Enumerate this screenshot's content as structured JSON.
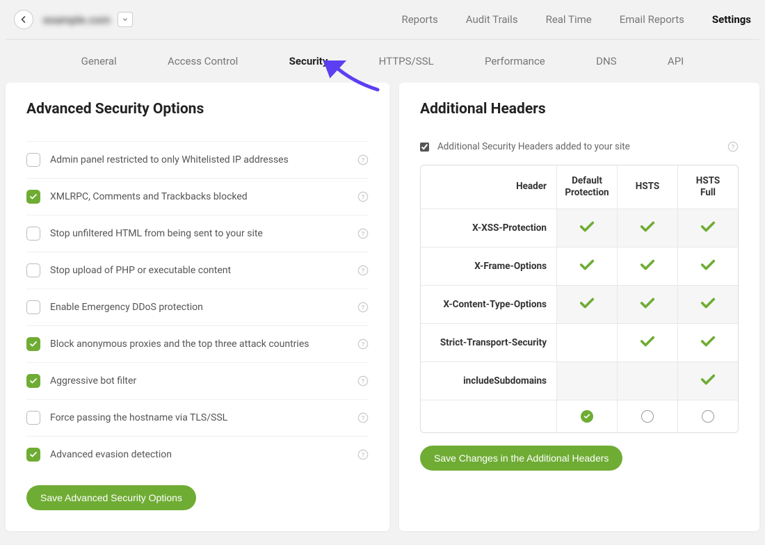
{
  "header": {
    "domain": "example.com",
    "nav": [
      {
        "label": "Reports",
        "active": false
      },
      {
        "label": "Audit Trails",
        "active": false
      },
      {
        "label": "Real Time",
        "active": false
      },
      {
        "label": "Email Reports",
        "active": false
      },
      {
        "label": "Settings",
        "active": true
      }
    ]
  },
  "subnav": [
    {
      "label": "General",
      "active": false
    },
    {
      "label": "Access Control",
      "active": false
    },
    {
      "label": "Security",
      "active": true
    },
    {
      "label": "HTTPS/SSL",
      "active": false
    },
    {
      "label": "Performance",
      "active": false
    },
    {
      "label": "DNS",
      "active": false
    },
    {
      "label": "API",
      "active": false
    }
  ],
  "left_panel": {
    "title": "Advanced Security Options",
    "options": [
      {
        "label": "Admin panel restricted to only Whitelisted IP addresses",
        "checked": false
      },
      {
        "label": "XMLRPC, Comments and Trackbacks blocked",
        "checked": true
      },
      {
        "label": "Stop unfiltered HTML from being sent to your site",
        "checked": false
      },
      {
        "label": "Stop upload of PHP or executable content",
        "checked": false
      },
      {
        "label": "Enable Emergency DDoS protection",
        "checked": false
      },
      {
        "label": "Block anonymous proxies and the top three attack countries",
        "checked": true
      },
      {
        "label": "Aggressive bot filter",
        "checked": true
      },
      {
        "label": "Force passing the hostname via TLS/SSL",
        "checked": false
      },
      {
        "label": "Advanced evasion detection",
        "checked": true
      }
    ],
    "save_label": "Save Advanced Security Options"
  },
  "right_panel": {
    "title": "Additional Headers",
    "top_checkbox_label": "Additional Security Headers added to your site",
    "top_checkbox_checked": true,
    "table": {
      "col_header_name": "Header",
      "columns": [
        "Default Protection",
        "HSTS",
        "HSTS Full"
      ],
      "rows": [
        {
          "name": "X-XSS-Protection",
          "values": [
            true,
            true,
            true
          ]
        },
        {
          "name": "X-Frame-Options",
          "values": [
            true,
            true,
            true
          ]
        },
        {
          "name": "X-Content-Type-Options",
          "values": [
            true,
            true,
            true
          ]
        },
        {
          "name": "Strict-Transport-Security",
          "values": [
            false,
            true,
            true
          ]
        },
        {
          "name": "includeSubdomains",
          "values": [
            false,
            false,
            true
          ]
        }
      ],
      "selected_column": 0
    },
    "save_label": "Save Changes in the Additional Headers"
  },
  "colors": {
    "accent_green": "#6fac34",
    "annotation_arrow": "#5b3ff0",
    "background": "#f2f2f2",
    "panel_bg": "#ffffff",
    "border": "#e0e0e0",
    "text_muted": "#777777",
    "text": "#333333"
  }
}
